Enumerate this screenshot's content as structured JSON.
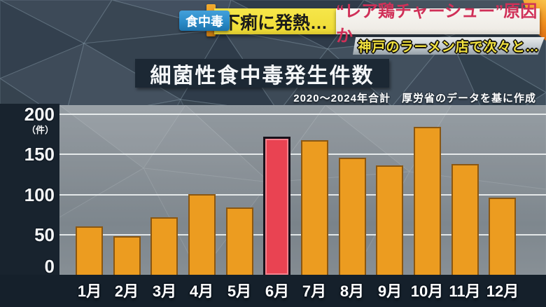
{
  "banner": {
    "badge": "食中毒",
    "headline_yellow": "下痢に発熱…",
    "headline_white": "“レア鶏チャーシュー”原因か",
    "sub_banner": "神戸のラーメン店で次々と…"
  },
  "chart": {
    "title": "細菌性食中毒発生件数",
    "note": "2020〜2024年合計　厚労省のデータを基に作成",
    "unit_label": "（件）"
  },
  "chart_data": {
    "type": "bar",
    "title": "細菌性食中毒発生件数",
    "subtitle": "2020〜2024年合計 厚労省のデータを基に作成",
    "categories": [
      "1月",
      "2月",
      "3月",
      "4月",
      "5月",
      "6月",
      "7月",
      "8月",
      "9月",
      "10月",
      "11月",
      "12月"
    ],
    "values": [
      60,
      48,
      72,
      100,
      84,
      172,
      168,
      146,
      136,
      184,
      138,
      96
    ],
    "highlight_index": 5,
    "ylabel": "（件）",
    "xlabel": "",
    "ylim": [
      0,
      200
    ],
    "yticks": [
      0,
      50,
      100,
      150,
      200
    ],
    "grid": true,
    "legend": "none",
    "colors": {
      "bar": "#EC9C20",
      "bar_border": "#8A5712",
      "highlight_bar": "#E94352",
      "highlight_border": "#18111A",
      "highlight_inner": "#F5828E",
      "gridline": "#F4F8F8",
      "panel_navy": "#18232E",
      "plot_grey": "#87909A",
      "badge_blue": "#2B8CC9",
      "banner_yellow": "#F0DD38",
      "headline_red_text": "#D03058"
    }
  }
}
